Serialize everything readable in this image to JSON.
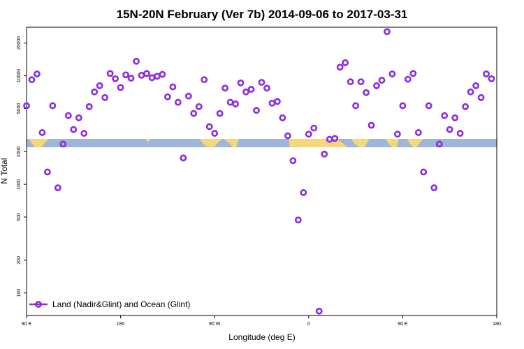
{
  "chart_data": {
    "type": "scatter",
    "title": "15N-20N February (Ver 7b)   2014-09-06 to 2017-03-31",
    "xlabel": "Longitude (deg E)",
    "ylabel": "N Total",
    "y_scale": "log",
    "ylim": [
      62,
      28000
    ],
    "x_ticks": [
      "90 E",
      "180",
      "90 W",
      "0",
      "90 E",
      "180"
    ],
    "y_ticks": [
      100,
      200,
      500,
      1000,
      2000,
      5000,
      10000,
      20000
    ],
    "grid": false,
    "legend_position": "bottom-left",
    "series": [
      {
        "name": "Land (Nadir&Glint) and Ocean (Glint)",
        "color": "#8a2be2",
        "marker": "open-circle",
        "points": [
          [
            -270,
            5300
          ],
          [
            -265,
            9200
          ],
          [
            -260,
            10400
          ],
          [
            -255,
            3000
          ],
          [
            -250,
            1300
          ],
          [
            -245,
            5300
          ],
          [
            -240,
            930
          ],
          [
            -235,
            2350
          ],
          [
            -230,
            4300
          ],
          [
            -225,
            3200
          ],
          [
            -220,
            4100
          ],
          [
            -215,
            2950
          ],
          [
            -210,
            5200
          ],
          [
            -205,
            7100
          ],
          [
            -200,
            8100
          ],
          [
            -195,
            6300
          ],
          [
            -190,
            10500
          ],
          [
            -185,
            9400
          ],
          [
            -180,
            7800
          ],
          [
            -175,
            10200
          ],
          [
            -170,
            9500
          ],
          [
            -165,
            13600
          ],
          [
            -160,
            10100
          ],
          [
            -155,
            10500
          ],
          [
            -150,
            9600
          ],
          [
            -145,
            9900
          ],
          [
            -140,
            10300
          ],
          [
            -135,
            6400
          ],
          [
            -130,
            7900
          ],
          [
            -125,
            5700
          ],
          [
            -120,
            1750
          ],
          [
            -115,
            6500
          ],
          [
            -110,
            4500
          ],
          [
            -105,
            5200
          ],
          [
            -100,
            9200
          ],
          [
            -95,
            3400
          ],
          [
            -90,
            2950
          ],
          [
            -85,
            4500
          ],
          [
            -80,
            7700
          ],
          [
            -75,
            5700
          ],
          [
            -70,
            5500
          ],
          [
            -65,
            8600
          ],
          [
            -60,
            7100
          ],
          [
            -55,
            7500
          ],
          [
            -50,
            4800
          ],
          [
            -45,
            8700
          ],
          [
            -40,
            7700
          ],
          [
            -35,
            5600
          ],
          [
            -30,
            5800
          ],
          [
            -25,
            4100
          ],
          [
            -20,
            2800
          ],
          [
            -15,
            1650
          ],
          [
            -10,
            470
          ],
          [
            -5,
            840
          ],
          [
            0,
            2900
          ],
          [
            5,
            3300
          ],
          [
            10,
            68
          ],
          [
            15,
            1900
          ],
          [
            20,
            2600
          ],
          [
            25,
            2650
          ],
          [
            30,
            12000
          ],
          [
            35,
            13200
          ],
          [
            40,
            8800
          ],
          [
            45,
            5300
          ],
          [
            50,
            8800
          ],
          [
            55,
            7000
          ],
          [
            60,
            3500
          ],
          [
            65,
            8100
          ],
          [
            70,
            9100
          ],
          [
            75,
            25500
          ],
          [
            80,
            10400
          ],
          [
            85,
            2900
          ],
          [
            90,
            5300
          ],
          [
            95,
            9300
          ],
          [
            100,
            10500
          ],
          [
            105,
            3000
          ],
          [
            110,
            1300
          ],
          [
            115,
            5300
          ],
          [
            120,
            930
          ],
          [
            125,
            2350
          ],
          [
            130,
            4300
          ],
          [
            135,
            3200
          ],
          [
            140,
            4100
          ],
          [
            145,
            2950
          ],
          [
            150,
            5200
          ],
          [
            155,
            7100
          ],
          [
            160,
            8100
          ],
          [
            165,
            6300
          ],
          [
            170,
            10400
          ],
          [
            175,
            9400
          ]
        ]
      }
    ]
  }
}
